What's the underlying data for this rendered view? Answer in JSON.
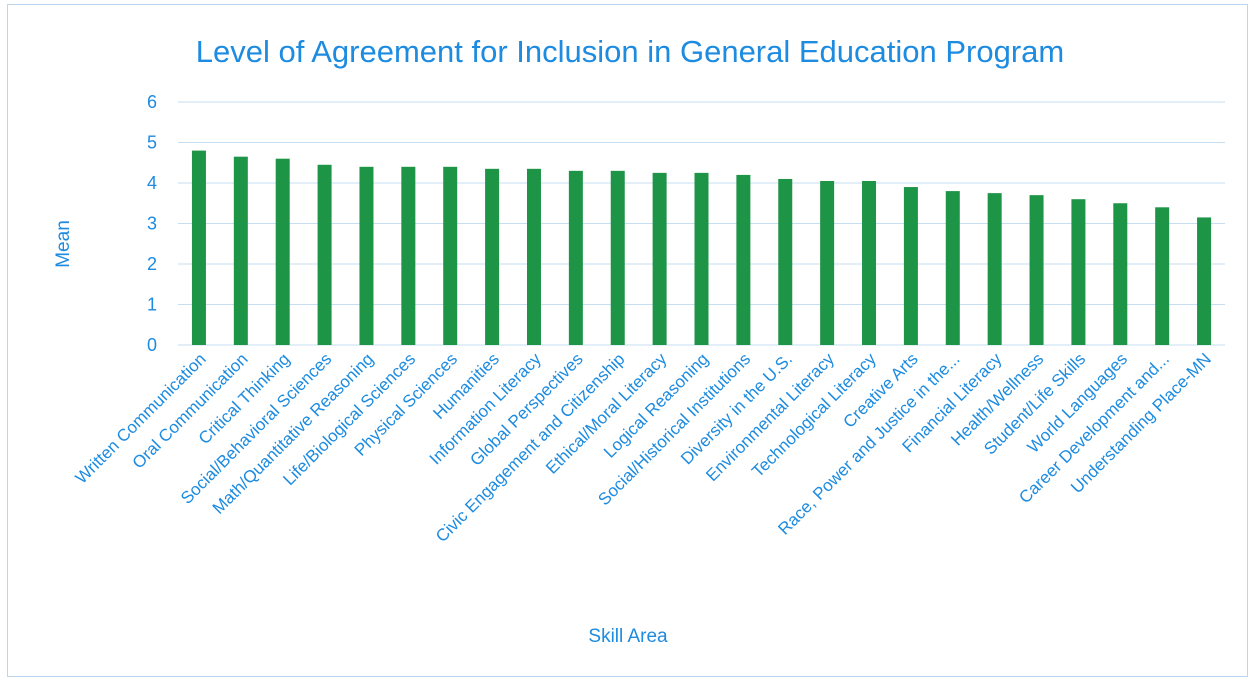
{
  "chart_data": {
    "type": "bar",
    "title": "Level of Agreement for Inclusion in General Education Program",
    "xlabel": "Skill Area",
    "ylabel": "Mean",
    "ylim": [
      0,
      6
    ],
    "yticks": [
      0,
      1,
      2,
      3,
      4,
      5,
      6
    ],
    "grid": true,
    "legend": "none",
    "bar_color": "#1e9447",
    "accent_color": "#1c8be0",
    "categories": [
      "Written Communication",
      "Oral Communication",
      "Critical Thinking",
      "Social/Behavioral Sciences",
      "Math/Quantitative Reasoning",
      "Life/Biological Sciences",
      "Physical Sciences",
      "Humanities",
      "Information Literacy",
      "Global Perspectives",
      "Civic Engagement and Citizenship",
      "Ethical/Moral Literacy",
      "Logical Reasoning",
      "Social/Historical Institutions",
      "Diversity in the U.S.",
      "Environmental Literacy",
      "Technological Literacy",
      "Creative Arts",
      "Race, Power and Justice in the...",
      "Financial Literacy",
      "Health/Wellness",
      "Student/Life Skills",
      "World Languages",
      "Career Development and...",
      "Understanding Place-MN"
    ],
    "values": [
      4.8,
      4.65,
      4.6,
      4.45,
      4.4,
      4.4,
      4.4,
      4.35,
      4.35,
      4.3,
      4.3,
      4.25,
      4.25,
      4.2,
      4.1,
      4.05,
      4.05,
      3.9,
      3.8,
      3.75,
      3.7,
      3.6,
      3.5,
      3.4,
      3.15
    ]
  }
}
